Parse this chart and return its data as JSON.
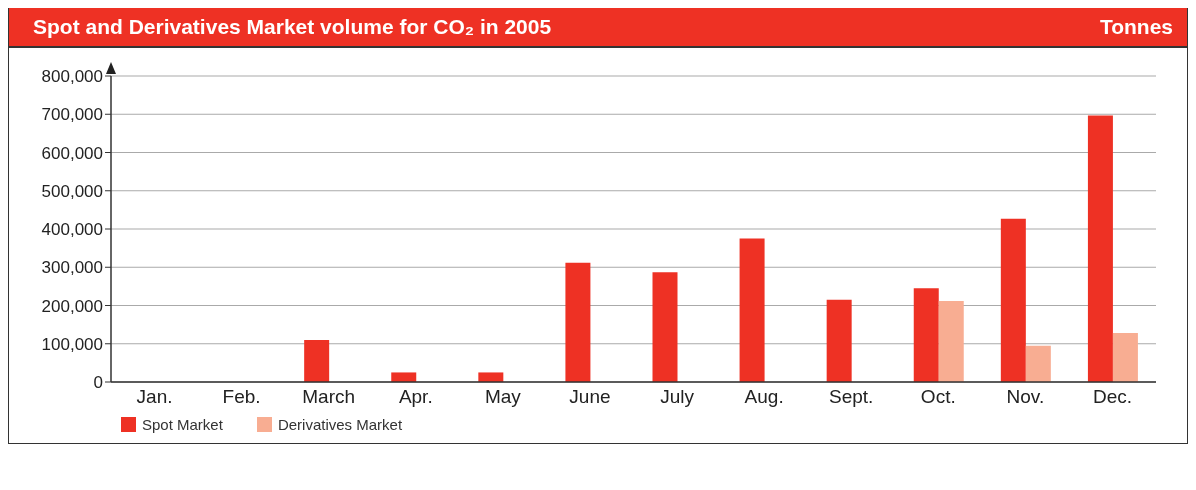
{
  "chart_data": {
    "type": "bar",
    "title": "Spot and Derivatives Market volume for CO₂ in 2005",
    "ylabel": "Tonnes",
    "categories": [
      "Jan.",
      "Feb.",
      "March",
      "Apr.",
      "May",
      "June",
      "July",
      "Aug.",
      "Sept.",
      "Oct.",
      "Nov.",
      "Dec."
    ],
    "series": [
      {
        "name": "Spot Market",
        "color": "#ee3124",
        "values": [
          0,
          0,
          110000,
          25000,
          25000,
          312000,
          287000,
          375000,
          215000,
          245000,
          427000,
          697000
        ]
      },
      {
        "name": "Derivatives Market",
        "color": "#f8ad92",
        "values": [
          0,
          0,
          0,
          0,
          0,
          0,
          0,
          0,
          0,
          212000,
          95000,
          128000
        ]
      }
    ],
    "ylim": [
      0,
      800000
    ],
    "yticks": [
      0,
      {
        "value": 100000,
        "label": "100,000"
      },
      {
        "value": 200000,
        "label": "200,000"
      },
      {
        "value": 300000,
        "label": "300,000"
      },
      {
        "value": 400000,
        "label": "400,000"
      },
      {
        "value": 500000,
        "label": "500,000"
      },
      {
        "value": 600000,
        "label": "600,000"
      },
      {
        "value": 700000,
        "label": "700,000"
      },
      {
        "value": 800000,
        "label": "800,000"
      }
    ],
    "grid": "y",
    "legend": "bottom left"
  }
}
